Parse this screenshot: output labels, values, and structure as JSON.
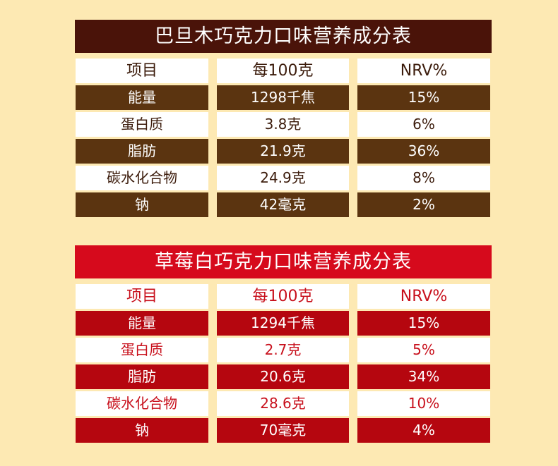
{
  "colors": {
    "background": "#fde9b3",
    "chocolate_title": "#4a1309",
    "chocolate_row": "#5b3410",
    "strawberry_title": "#d60a1c",
    "strawberry_row": "#b5060f"
  },
  "tables": [
    {
      "title": "巴旦木巧克力口味营养成分表",
      "headers": [
        "项目",
        "每100克",
        "NRV%"
      ],
      "rows": [
        [
          "能量",
          "1298千焦",
          "15%"
        ],
        [
          "蛋白质",
          "3.8克",
          "6%"
        ],
        [
          "脂肪",
          "21.9克",
          "36%"
        ],
        [
          "碳水化合物",
          "24.9克",
          "8%"
        ],
        [
          "钠",
          "42毫克",
          "2%"
        ]
      ]
    },
    {
      "title": "草莓白巧克力口味营养成分表",
      "headers": [
        "项目",
        "每100克",
        "NRV%"
      ],
      "rows": [
        [
          "能量",
          "1294千焦",
          "15%"
        ],
        [
          "蛋白质",
          "2.7克",
          "5%"
        ],
        [
          "脂肪",
          "20.6克",
          "34%"
        ],
        [
          "碳水化合物",
          "28.6克",
          "10%"
        ],
        [
          "钠",
          "70毫克",
          "4%"
        ]
      ]
    }
  ]
}
